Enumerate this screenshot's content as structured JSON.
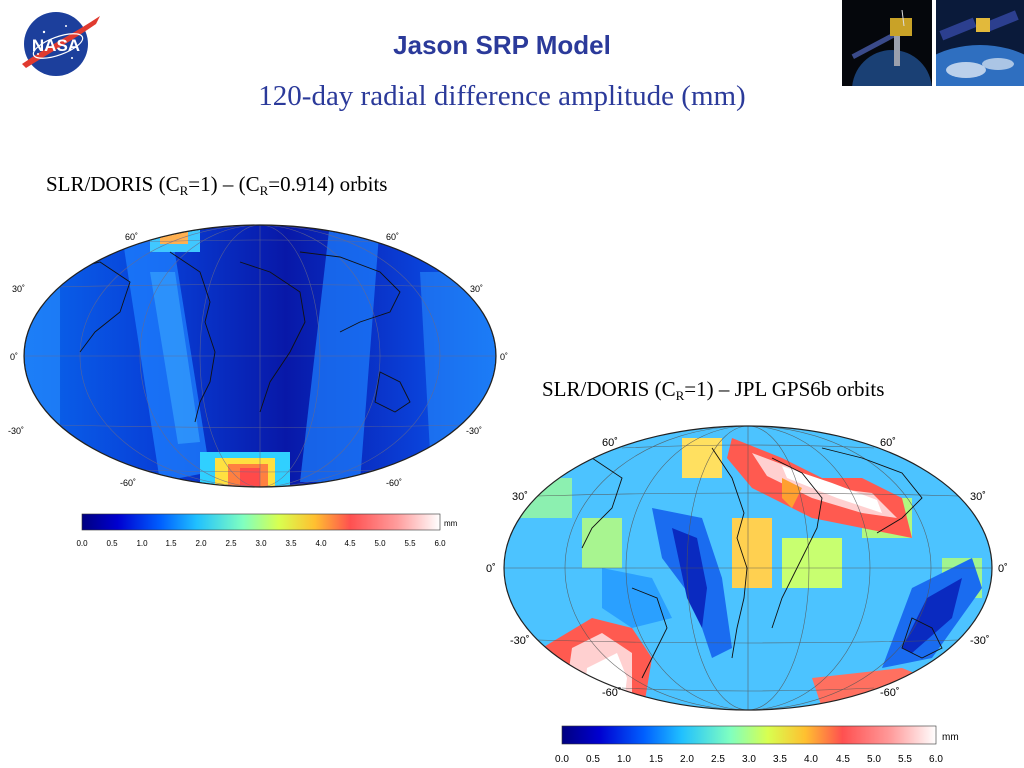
{
  "header": {
    "title": "Jason SRP Model",
    "subtitle": "120-day radial difference amplitude (mm)",
    "logo_text": "NASA"
  },
  "panels": [
    {
      "caption_prefix": "SLR/DORIS (C",
      "caption_sub1": "R",
      "caption_mid": "=1) – (C",
      "caption_sub2": "R",
      "caption_suffix": "=0.914) orbits",
      "lat_labels": [
        "60˚",
        "30˚",
        "0˚",
        "-30˚",
        "-60˚"
      ],
      "colorbar": {
        "unit": "mm",
        "ticks": [
          "0.0",
          "0.5",
          "1.0",
          "1.5",
          "2.0",
          "2.5",
          "3.0",
          "3.5",
          "4.0",
          "4.5",
          "5.0",
          "5.5",
          "6.0"
        ]
      }
    },
    {
      "caption_prefix": "SLR/DORIS (C",
      "caption_sub1": "R",
      "caption_suffix": "=1) – JPL GPS6b orbits",
      "lat_labels": [
        "60˚",
        "30˚",
        "0˚",
        "-30˚",
        "-60˚"
      ],
      "colorbar": {
        "unit": "mm",
        "ticks": [
          "0.0",
          "0.5",
          "1.0",
          "1.5",
          "2.0",
          "2.5",
          "3.0",
          "3.5",
          "4.0",
          "4.5",
          "5.0",
          "5.5",
          "6.0"
        ]
      }
    }
  ],
  "colors": {
    "title": "#2b3a9a",
    "colormap": [
      "#000080",
      "#0000c8",
      "#0040ff",
      "#0090ff",
      "#20d0ff",
      "#80ffc0",
      "#c8ff60",
      "#ffe040",
      "#ffa030",
      "#ff5a50",
      "#ff9090",
      "#ffd0d0",
      "#ffffff"
    ]
  }
}
